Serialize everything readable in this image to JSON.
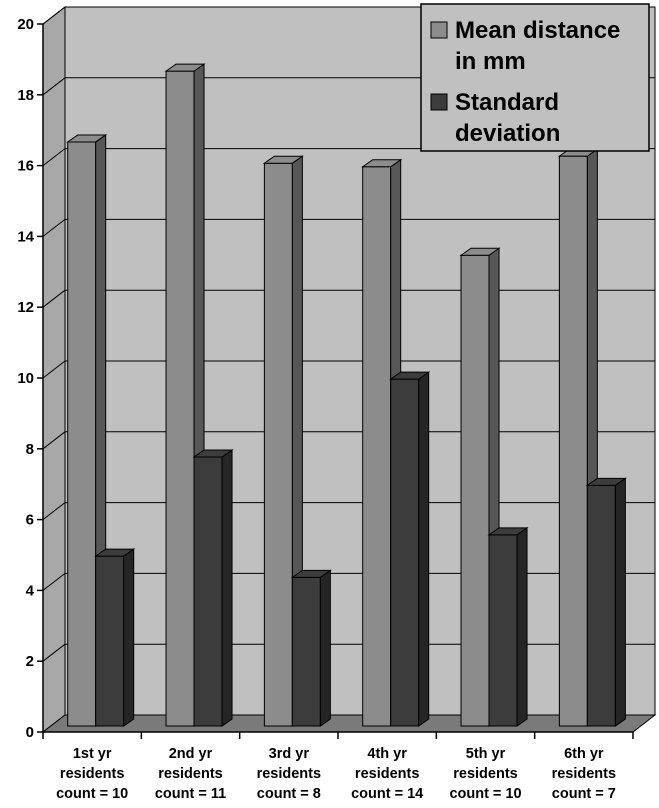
{
  "chart_data": {
    "type": "bar",
    "categories": [
      [
        "1st yr",
        "residents",
        "count = 10"
      ],
      [
        "2nd yr",
        "residents",
        "count = 11"
      ],
      [
        "3rd yr",
        "residents",
        "count = 8"
      ],
      [
        "4th yr",
        "residents",
        "count = 14"
      ],
      [
        "5th yr",
        "residents",
        "count = 10"
      ],
      [
        "6th yr",
        "residents",
        "count = 7"
      ]
    ],
    "series": [
      {
        "name": "Mean distance in mm",
        "legend_lines": [
          "Mean distance",
          "in mm"
        ],
        "color": "#8c8c8c",
        "values": [
          16.5,
          18.5,
          15.9,
          15.8,
          13.3,
          16.1
        ]
      },
      {
        "name": "Standard deviation",
        "legend_lines": [
          "Standard",
          "deviation"
        ],
        "color": "#3c3c3c",
        "values": [
          4.8,
          7.6,
          4.2,
          9.8,
          5.4,
          6.8
        ]
      }
    ],
    "ylim": [
      0,
      20
    ],
    "yticks": [
      0,
      2,
      4,
      6,
      8,
      10,
      12,
      14,
      16,
      18,
      20
    ],
    "grid": true,
    "legend_position": "top-right",
    "style": "3d",
    "plot_background": "#c0c0c0"
  }
}
